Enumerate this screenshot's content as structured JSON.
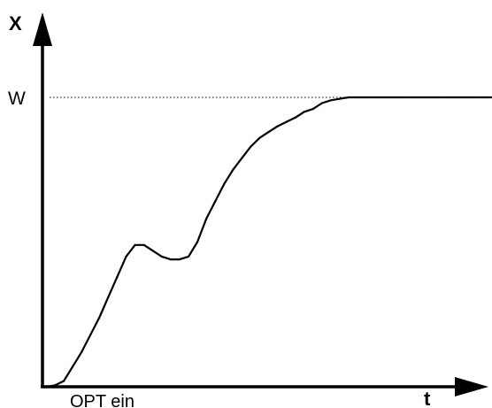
{
  "chart_data": {
    "type": "line",
    "title": "",
    "xlabel": "t",
    "ylabel": "X",
    "reference_line": {
      "label": "W",
      "y": 1.0,
      "style": "dotted"
    },
    "annotation": "OPT ein",
    "xlim": [
      0,
      100
    ],
    "ylim": [
      0,
      1.2
    ],
    "grid": false,
    "series": [
      {
        "x": [
          0,
          2,
          4,
          6,
          8,
          10,
          12,
          14,
          16,
          18,
          20,
          22,
          24,
          26,
          28,
          30,
          32,
          34,
          36,
          38,
          40,
          42,
          44,
          46,
          48,
          50,
          52,
          54,
          56,
          58,
          60,
          62,
          64,
          66,
          68,
          70,
          72,
          74,
          76,
          78,
          80,
          82,
          84,
          86,
          88,
          90,
          92,
          94,
          96,
          98,
          100
        ],
        "values": [
          0.0,
          0.005,
          0.02,
          0.07,
          0.12,
          0.18,
          0.24,
          0.31,
          0.38,
          0.45,
          0.49,
          0.49,
          0.47,
          0.45,
          0.44,
          0.44,
          0.45,
          0.5,
          0.58,
          0.64,
          0.7,
          0.75,
          0.79,
          0.83,
          0.86,
          0.88,
          0.9,
          0.915,
          0.93,
          0.95,
          0.96,
          0.98,
          0.99,
          0.995,
          1.0,
          1.0,
          1.0,
          1.0,
          1.0,
          1.0,
          1.0,
          1.0,
          1.0,
          1.0,
          1.0,
          1.0,
          1.0,
          1.0,
          1.0,
          1.0,
          1.0
        ]
      }
    ]
  }
}
